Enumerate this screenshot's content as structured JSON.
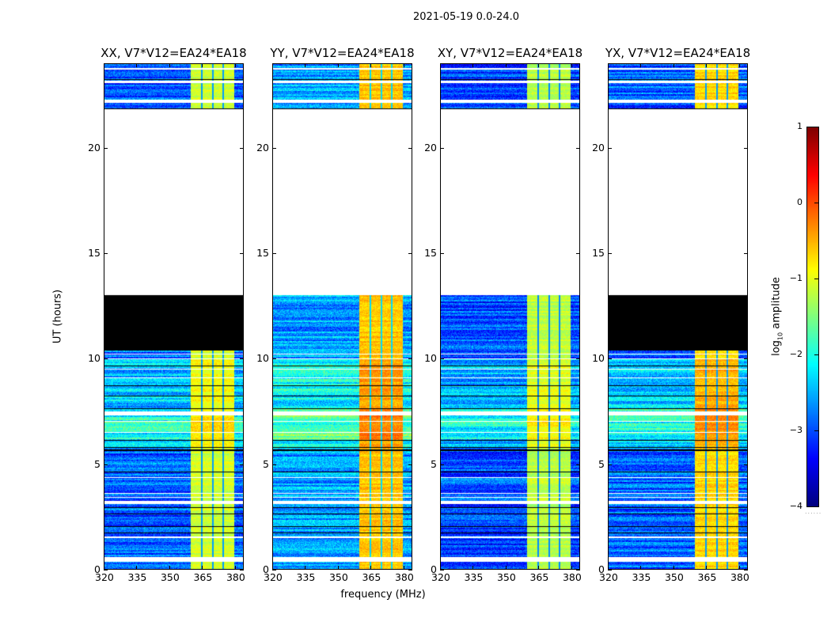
{
  "suptitle": "2021-05-19 0.0-24.0",
  "colorbar": {
    "label_prefix": "log",
    "label_sub": "10",
    "label_suffix": " amplitude",
    "range": [
      -4,
      1
    ],
    "ticks": [
      1,
      0,
      -1,
      -2,
      -3,
      -4
    ],
    "tick_labels": [
      "1",
      "0",
      "−1",
      "−2",
      "−3",
      "−4"
    ],
    "colormap": "jet",
    "dots": "......"
  },
  "chart_data": [
    {
      "type": "heatmap",
      "title": "XX, V7*V12=EA24*EA18",
      "ylabel": "UT (hours)",
      "xlabel": "",
      "xlim": [
        320,
        384
      ],
      "ylim": [
        0,
        24
      ],
      "xticks": [
        320,
        335,
        350,
        365,
        380
      ],
      "yticks": [
        0,
        5,
        10,
        15,
        20
      ],
      "background_level": -2.9,
      "band": {
        "range_mhz": [
          360,
          380
        ],
        "level": -1.1
      },
      "flagged_ranges": [
        [
          10.4,
          13.0
        ]
      ],
      "nodata_ranges": [
        [
          13.0,
          21.85
        ]
      ]
    },
    {
      "type": "heatmap",
      "title": "YY, V7*V12=EA24*EA18",
      "ylabel": "",
      "xlabel": "frequency (MHz)",
      "xlim": [
        320,
        384
      ],
      "ylim": [
        0,
        24
      ],
      "xticks": [
        320,
        335,
        350,
        365,
        380
      ],
      "yticks": [
        0,
        5,
        10,
        15,
        20
      ],
      "background_level": -2.6,
      "band": {
        "range_mhz": [
          360,
          380
        ],
        "level": -0.6
      },
      "flagged_ranges": [],
      "nodata_ranges": [
        [
          13.0,
          21.85
        ]
      ]
    },
    {
      "type": "heatmap",
      "title": "XY, V7*V12=EA24*EA18",
      "ylabel": "",
      "xlabel": "",
      "xlim": [
        320,
        384
      ],
      "ylim": [
        0,
        24
      ],
      "xticks": [
        320,
        335,
        350,
        365,
        380
      ],
      "yticks": [
        0,
        5,
        10,
        15,
        20
      ],
      "background_level": -3.0,
      "band": {
        "range_mhz": [
          360,
          380
        ],
        "level": -1.2
      },
      "flagged_ranges": [],
      "nodata_ranges": [
        [
          13.0,
          21.85
        ]
      ]
    },
    {
      "type": "heatmap",
      "title": "YX, V7*V12=EA24*EA18",
      "ylabel": "",
      "xlabel": "",
      "xlim": [
        320,
        384
      ],
      "ylim": [
        0,
        24
      ],
      "xticks": [
        320,
        335,
        350,
        365,
        380
      ],
      "yticks": [
        0,
        5,
        10,
        15,
        20
      ],
      "background_level": -2.9,
      "band": {
        "range_mhz": [
          360,
          380
        ],
        "level": -0.7
      },
      "flagged_ranges": [
        [
          10.4,
          13.0
        ]
      ],
      "nodata_ranges": [
        [
          13.0,
          21.85
        ]
      ]
    }
  ],
  "gaps_white_ut": [
    [
      0.35,
      0.55
    ],
    [
      1.48,
      1.53
    ],
    [
      3.1,
      3.22
    ],
    [
      3.38,
      3.42
    ],
    [
      3.58,
      3.62
    ],
    [
      4.33,
      4.38
    ],
    [
      6.48,
      6.52
    ],
    [
      6.98,
      7.02
    ],
    [
      7.3,
      7.5
    ],
    [
      9.08,
      9.12
    ],
    [
      9.48,
      9.52
    ],
    [
      9.98,
      10.02
    ],
    [
      10.18,
      10.22
    ],
    [
      22.15,
      22.3
    ],
    [
      23.1,
      23.22
    ],
    [
      23.75,
      23.82
    ]
  ],
  "flag_lines_black_ut": [
    [
      1.7,
      1.74
    ],
    [
      2.0,
      2.03
    ],
    [
      2.6,
      2.63
    ],
    [
      2.9,
      2.93
    ],
    [
      4.6,
      4.64
    ],
    [
      5.62,
      5.68
    ],
    [
      5.75,
      5.78
    ],
    [
      6.08,
      6.12
    ],
    [
      7.6,
      7.63
    ],
    [
      8.2,
      8.24
    ],
    [
      8.68,
      8.72
    ],
    [
      9.62,
      9.66
    ],
    [
      21.82,
      21.9
    ],
    [
      23.23,
      23.28
    ]
  ],
  "band_notches_mhz": [
    365,
    370.2,
    374.9
  ]
}
